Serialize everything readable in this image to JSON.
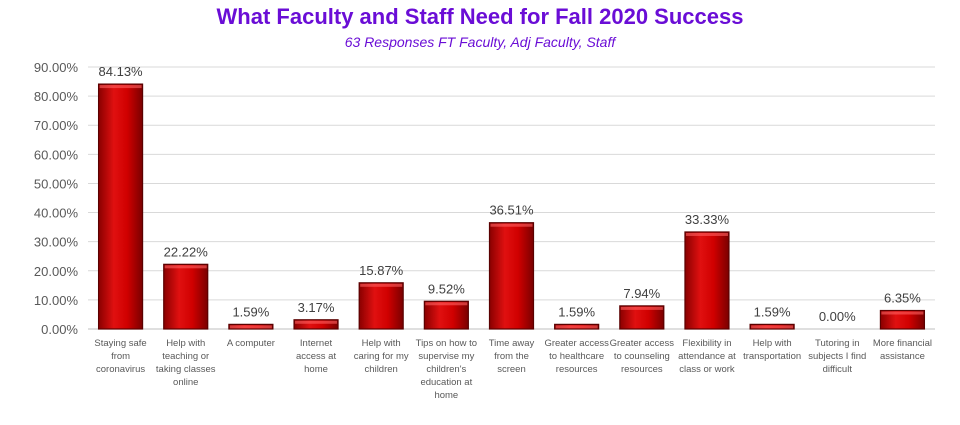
{
  "chart_data": {
    "type": "bar",
    "title": "What Faculty and Staff Need for Fall 2020 Success",
    "subtitle": "63 Responses FT Faculty, Adj Faculty, Staff",
    "xlabel": "",
    "ylabel": "",
    "ylim": [
      0,
      90
    ],
    "yticks": [
      "0.00%",
      "10.00%",
      "20.00%",
      "30.00%",
      "40.00%",
      "50.00%",
      "60.00%",
      "70.00%",
      "80.00%",
      "90.00%"
    ],
    "grid": true,
    "categories": [
      [
        "Staying safe",
        "from",
        "coronavirus"
      ],
      [
        "Help with",
        "teaching or",
        "taking classes",
        "online"
      ],
      [
        "A computer"
      ],
      [
        "Internet",
        "access at",
        "home"
      ],
      [
        "Help with",
        "caring for my",
        "children"
      ],
      [
        "Tips on how to",
        "supervise my",
        "children's",
        "education at",
        "home"
      ],
      [
        "Time away",
        "from the",
        "screen"
      ],
      [
        "Greater access",
        "to healthcare",
        "resources"
      ],
      [
        "Greater access",
        "to counseling",
        "resources"
      ],
      [
        "Flexibility in",
        "attendance at",
        "class or work"
      ],
      [
        "Help with",
        "transportation"
      ],
      [
        "Tutoring in",
        "subjects I find",
        "difficult"
      ],
      [
        "More financial",
        "assistance"
      ]
    ],
    "values": [
      84.13,
      22.22,
      1.59,
      3.17,
      15.87,
      9.52,
      36.51,
      1.59,
      7.94,
      33.33,
      1.59,
      0.0,
      6.35
    ],
    "data_labels": [
      "84.13%",
      "22.22%",
      "1.59%",
      "3.17%",
      "15.87%",
      "9.52%",
      "36.51%",
      "1.59%",
      "7.94%",
      "33.33%",
      "1.59%",
      "0.00%",
      "6.35%"
    ],
    "bar_color": "#cc0000"
  }
}
